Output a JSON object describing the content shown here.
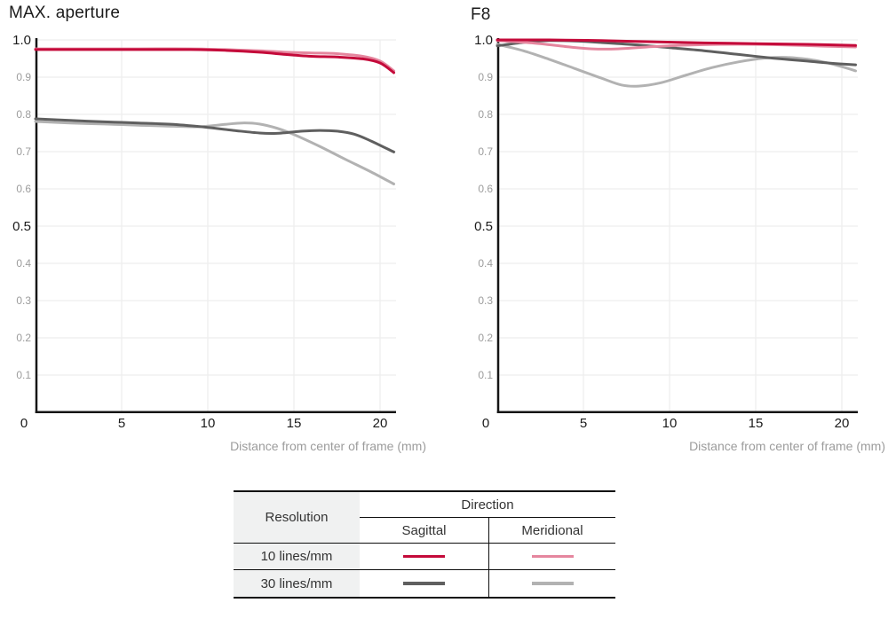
{
  "colors": {
    "sagittal_10": "#c40a3a",
    "meridional_10": "#e5869e",
    "sagittal_30": "#5f5f5f",
    "meridional_30": "#b2b2b2",
    "axis": "#151515",
    "grid": "#ededed",
    "tick_major": "#1b1b1b",
    "tick_minor": "#9c9c9c",
    "axis_title": "#9c9c9c"
  },
  "chart_data": [
    {
      "type": "line",
      "title": "MAX. aperture",
      "xlabel": "Distance from center of frame (mm)",
      "ylabel": "",
      "xlim": [
        0,
        21
      ],
      "ylim": [
        0,
        1.0
      ],
      "grid": true,
      "x_ticks": [
        0,
        5,
        10,
        15,
        20
      ],
      "y_ticks": [
        0.1,
        0.2,
        0.3,
        0.4,
        0.5,
        0.6,
        0.7,
        0.8,
        0.9,
        1.0
      ],
      "y_major": [
        0.5,
        1.0
      ],
      "series": [
        {
          "name": "10 lines/mm Sagittal",
          "color": "#c40a3a",
          "points": [
            [
              0,
              0.974
            ],
            [
              3,
              0.974
            ],
            [
              6,
              0.974
            ],
            [
              9,
              0.974
            ],
            [
              11,
              0.972
            ],
            [
              13,
              0.967
            ],
            [
              14.5,
              0.961
            ],
            [
              16,
              0.956
            ],
            [
              17.5,
              0.954
            ],
            [
              19,
              0.949
            ],
            [
              20,
              0.938
            ],
            [
              20.8,
              0.912
            ]
          ]
        },
        {
          "name": "10 lines/mm Meridional",
          "color": "#e5869e",
          "points": [
            [
              0,
              0.976
            ],
            [
              3,
              0.976
            ],
            [
              6,
              0.976
            ],
            [
              9,
              0.976
            ],
            [
              11,
              0.974
            ],
            [
              13,
              0.971
            ],
            [
              14.5,
              0.967
            ],
            [
              16,
              0.965
            ],
            [
              17.5,
              0.963
            ],
            [
              19,
              0.956
            ],
            [
              20,
              0.943
            ],
            [
              20.8,
              0.917
            ]
          ]
        },
        {
          "name": "30 lines/mm Sagittal",
          "color": "#5f5f5f",
          "points": [
            [
              0,
              0.788
            ],
            [
              2,
              0.784
            ],
            [
              4,
              0.78
            ],
            [
              6,
              0.777
            ],
            [
              8,
              0.773
            ],
            [
              10,
              0.765
            ],
            [
              11.5,
              0.757
            ],
            [
              13,
              0.75
            ],
            [
              14,
              0.749
            ],
            [
              15.5,
              0.755
            ],
            [
              16.5,
              0.757
            ],
            [
              17.5,
              0.755
            ],
            [
              18.5,
              0.747
            ],
            [
              19.5,
              0.728
            ],
            [
              20.8,
              0.699
            ]
          ]
        },
        {
          "name": "30 lines/mm Meridional",
          "color": "#b2b2b2",
          "points": [
            [
              0,
              0.781
            ],
            [
              2,
              0.777
            ],
            [
              4,
              0.774
            ],
            [
              6,
              0.771
            ],
            [
              8,
              0.768
            ],
            [
              9.5,
              0.767
            ],
            [
              11,
              0.773
            ],
            [
              12,
              0.777
            ],
            [
              13,
              0.774
            ],
            [
              14,
              0.763
            ],
            [
              15,
              0.746
            ],
            [
              16.5,
              0.714
            ],
            [
              18,
              0.679
            ],
            [
              19.5,
              0.645
            ],
            [
              20.8,
              0.613
            ]
          ]
        }
      ]
    },
    {
      "type": "line",
      "title": "F8",
      "xlabel": "Distance from center of frame (mm)",
      "ylabel": "",
      "xlim": [
        0,
        21
      ],
      "ylim": [
        0,
        1.0
      ],
      "grid": true,
      "x_ticks": [
        0,
        5,
        10,
        15,
        20
      ],
      "y_ticks": [
        0.1,
        0.2,
        0.3,
        0.4,
        0.5,
        0.6,
        0.7,
        0.8,
        0.9,
        1.0
      ],
      "y_major": [
        0.5,
        1.0
      ],
      "series": [
        {
          "name": "10 lines/mm Sagittal",
          "color": "#c40a3a",
          "points": [
            [
              0,
              1.0
            ],
            [
              3,
              1.0
            ],
            [
              6,
              0.998
            ],
            [
              9,
              0.995
            ],
            [
              12,
              0.992
            ],
            [
              15,
              0.99
            ],
            [
              18,
              0.988
            ],
            [
              20.8,
              0.985
            ]
          ]
        },
        {
          "name": "10 lines/mm Meridional",
          "color": "#e5869e",
          "points": [
            [
              0,
              0.998
            ],
            [
              2,
              0.992
            ],
            [
              4,
              0.982
            ],
            [
              5.5,
              0.976
            ],
            [
              7,
              0.976
            ],
            [
              9,
              0.982
            ],
            [
              11,
              0.986
            ],
            [
              13,
              0.988
            ],
            [
              15,
              0.988
            ],
            [
              17,
              0.986
            ],
            [
              19,
              0.983
            ],
            [
              20.8,
              0.981
            ]
          ]
        },
        {
          "name": "30 lines/mm Sagittal",
          "color": "#5f5f5f",
          "points": [
            [
              0,
              0.984
            ],
            [
              1.5,
              0.993
            ],
            [
              3,
              0.998
            ],
            [
              4.5,
              0.997
            ],
            [
              6,
              0.993
            ],
            [
              8,
              0.987
            ],
            [
              10,
              0.979
            ],
            [
              12,
              0.971
            ],
            [
              14,
              0.961
            ],
            [
              16,
              0.951
            ],
            [
              18,
              0.943
            ],
            [
              19.5,
              0.937
            ],
            [
              20.8,
              0.933
            ]
          ]
        },
        {
          "name": "30 lines/mm Meridional",
          "color": "#b2b2b2",
          "points": [
            [
              0,
              0.988
            ],
            [
              1.5,
              0.971
            ],
            [
              3,
              0.948
            ],
            [
              4.5,
              0.923
            ],
            [
              6,
              0.898
            ],
            [
              7.2,
              0.879
            ],
            [
              8.2,
              0.876
            ],
            [
              9.5,
              0.885
            ],
            [
              11,
              0.906
            ],
            [
              12.5,
              0.926
            ],
            [
              14,
              0.941
            ],
            [
              15.5,
              0.951
            ],
            [
              16.8,
              0.953
            ],
            [
              18,
              0.948
            ],
            [
              19,
              0.94
            ],
            [
              20,
              0.928
            ],
            [
              20.8,
              0.917
            ]
          ]
        }
      ]
    }
  ],
  "legend": {
    "resolution_header": "Resolution",
    "direction_header": "Direction",
    "col_sagittal": "Sagittal",
    "col_meridional": "Meridional",
    "rows": [
      {
        "label": "10 lines/mm",
        "sagittal_color": "#c40a3a",
        "meridional_color": "#e5869e"
      },
      {
        "label": "30 lines/mm",
        "sagittal_color": "#5f5f5f",
        "meridional_color": "#b2b2b2"
      }
    ]
  }
}
